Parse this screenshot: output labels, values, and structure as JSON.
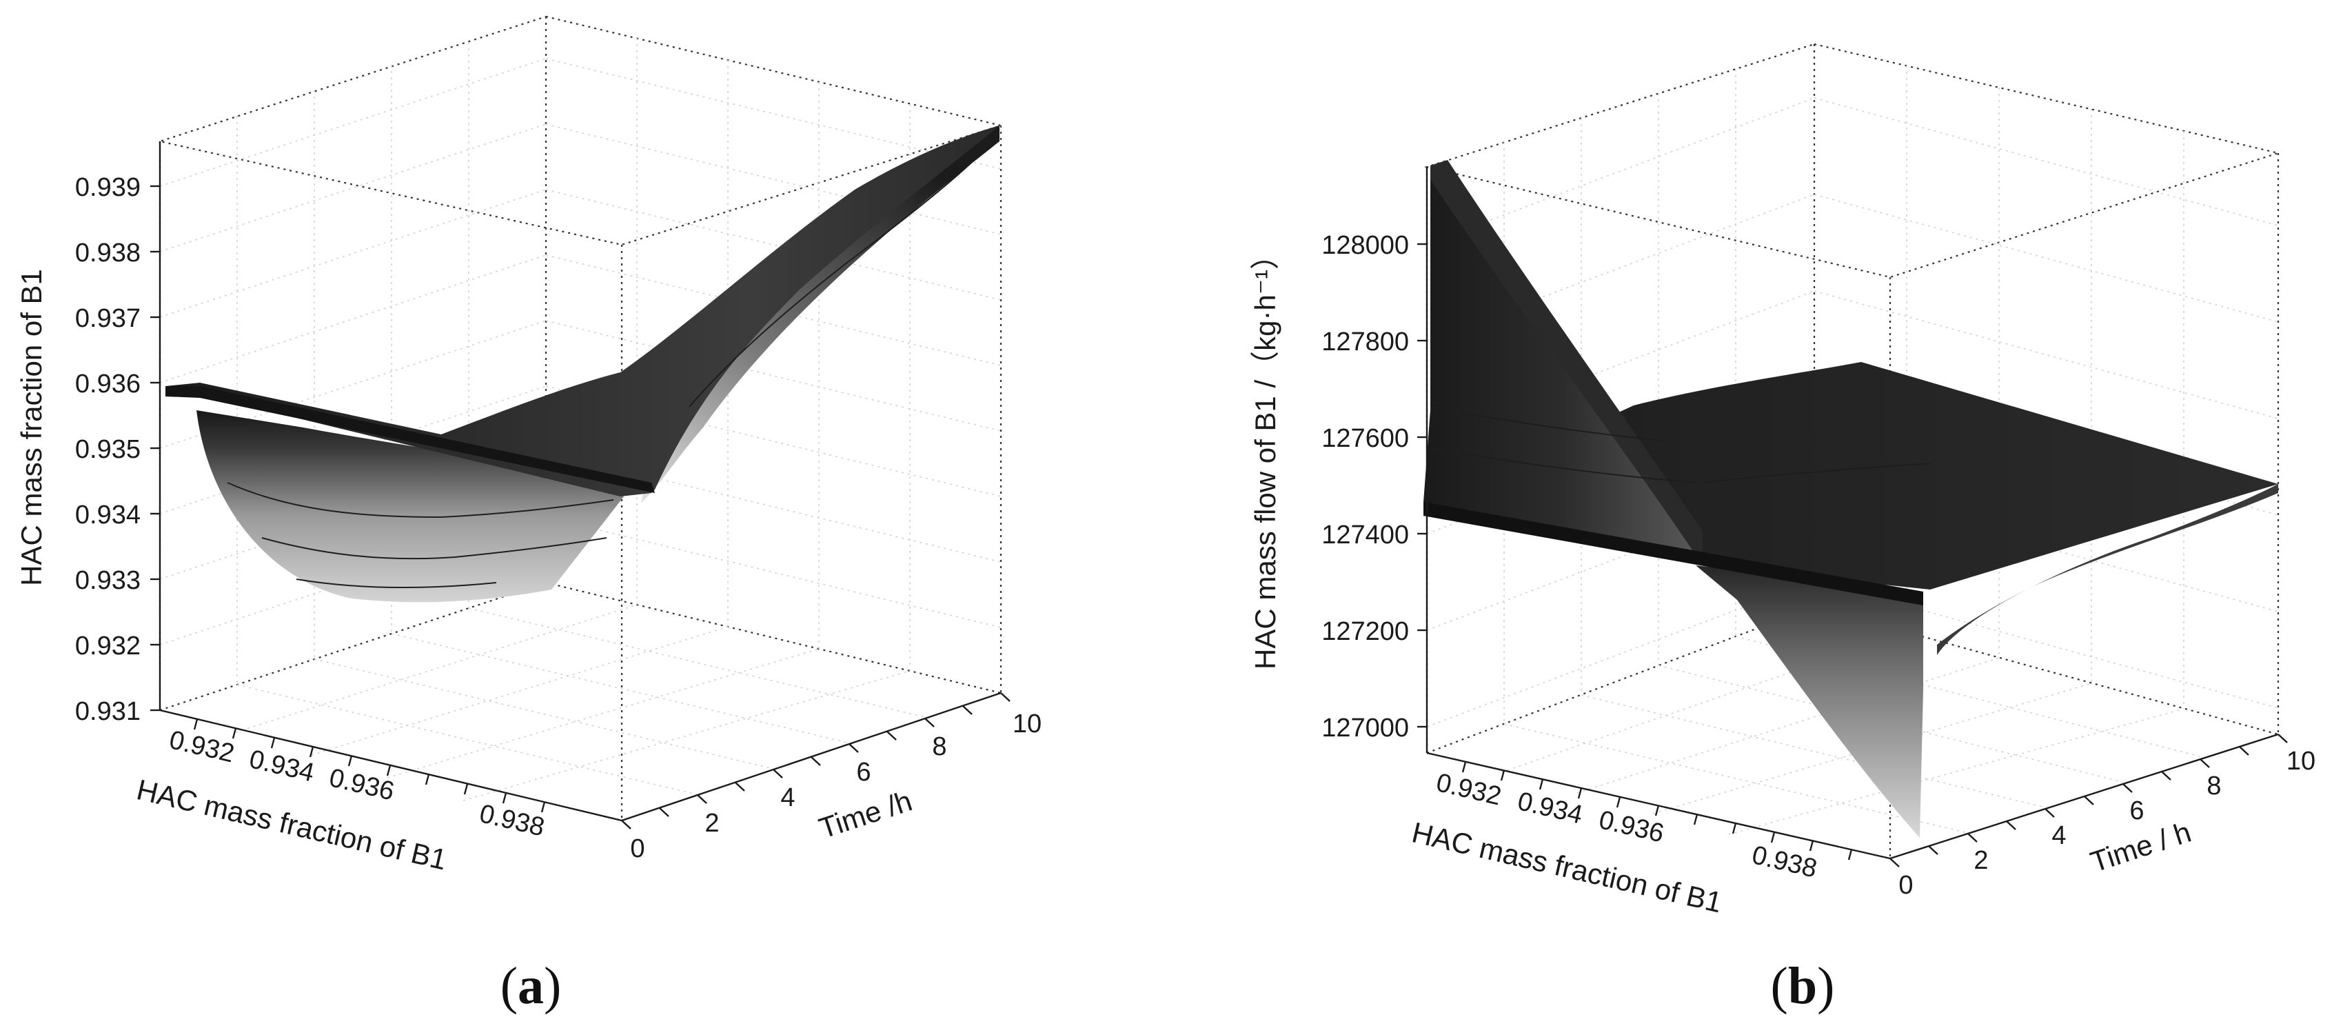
{
  "chart_data": [
    {
      "type": "surface3d",
      "panel": "(a)",
      "zlabel": "HAC mass fraction of B1",
      "xlabel": "HAC mass fraction of B1",
      "ylabel": "Time /h",
      "z_ticks": [
        "0.931",
        "0.932",
        "0.933",
        "0.934",
        "0.935",
        "0.936",
        "0.937",
        "0.938",
        "0.939"
      ],
      "x_ticks": [
        "0.932",
        "0.934",
        "0.936",
        "0.938"
      ],
      "y_ticks": [
        "0",
        "2",
        "4",
        "6",
        "8",
        "10"
      ],
      "zlim": [
        0.931,
        0.9397
      ],
      "xlim": [
        0.9315,
        0.9398
      ],
      "ylim": [
        0,
        10
      ],
      "colormap": [
        "#1c1c1c",
        "#d2d2d2"
      ]
    },
    {
      "type": "surface3d",
      "panel": "(b)",
      "zlabel": "HAC mass flow of B1 /（kg·h⁻¹）",
      "xlabel": "HAC mass fraction of B1",
      "ylabel": "Time / h",
      "z_ticks": [
        "127000",
        "127200",
        "127400",
        "127600",
        "127800",
        "128000"
      ],
      "x_ticks": [
        "0.932",
        "0.934",
        "0.936",
        "0.938"
      ],
      "y_ticks": [
        "0",
        "2",
        "4",
        "6",
        "8",
        "10"
      ],
      "zlim": [
        126950,
        128020
      ],
      "xlim": [
        0.9315,
        0.9398
      ],
      "ylim": [
        0,
        10
      ],
      "colormap": [
        "#1c1c1c",
        "#d2d2d2"
      ]
    }
  ]
}
